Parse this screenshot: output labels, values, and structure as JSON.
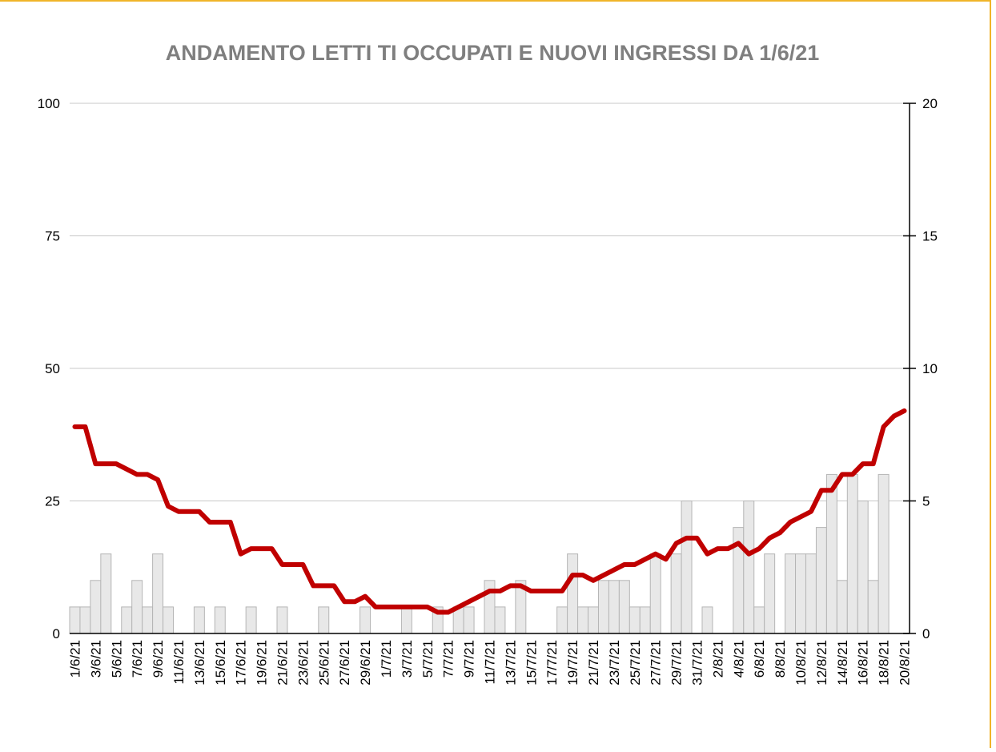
{
  "chart_data": {
    "type": "bar_line",
    "title": "ANDAMENTO LETTI TI OCCUPATI E NUOVI INGRESSI DA 1/6/21",
    "categories": [
      "1/6/21",
      null,
      "3/6/21",
      null,
      "5/6/21",
      null,
      "7/6/21",
      null,
      "9/6/21",
      null,
      "11/6/21",
      null,
      "13/6/21",
      null,
      "15/6/21",
      null,
      "17/6/21",
      null,
      "19/6/21",
      null,
      "21/6/21",
      null,
      "23/6/21",
      null,
      "25/6/21",
      null,
      "27/6/21",
      null,
      "29/6/21",
      null,
      "1/7/21",
      null,
      "3/7/21",
      null,
      "5/7/21",
      null,
      "7/7/21",
      null,
      "9/7/21",
      null,
      "11/7/21",
      null,
      "13/7/21",
      null,
      "15/7/21",
      null,
      "17/7/21",
      null,
      "19/7/21",
      null,
      "21/7/21",
      null,
      "23/7/21",
      null,
      "25/7/21",
      null,
      "27/7/21",
      null,
      "29/7/21",
      null,
      "31/7/21",
      null,
      "2/8/21",
      null,
      "4/8/21",
      null,
      "6/8/21",
      null,
      "8/8/21",
      null,
      "10/8/21",
      null,
      "12/8/21",
      null,
      "14/8/21",
      null,
      "16/8/21",
      null,
      "18/8/21",
      null,
      "20/8/21"
    ],
    "series": [
      {
        "type": "bar",
        "axis": "y2",
        "color": "#e8e8e8",
        "values": [
          1,
          1,
          2,
          3,
          0,
          1,
          2,
          1,
          3,
          1,
          0,
          0,
          1,
          0,
          1,
          0,
          0,
          1,
          0,
          0,
          1,
          0,
          0,
          0,
          1,
          0,
          0,
          0,
          1,
          0,
          0,
          0,
          1,
          0,
          0,
          1,
          0,
          1,
          1,
          0,
          2,
          1,
          0,
          2,
          0,
          0,
          0,
          1,
          3,
          1,
          1,
          2,
          2,
          2,
          1,
          1,
          3,
          0,
          3,
          5,
          0,
          1,
          0,
          0,
          4,
          5,
          1,
          3,
          0,
          3,
          3,
          3,
          4,
          6,
          2,
          6,
          5,
          2,
          6,
          0,
          0
        ]
      },
      {
        "type": "line",
        "axis": "y",
        "color": "#c00000",
        "values": [
          39,
          39,
          32,
          32,
          32,
          31,
          30,
          30,
          29,
          24,
          23,
          23,
          23,
          21,
          21,
          21,
          15,
          16,
          16,
          16,
          13,
          13,
          13,
          9,
          9,
          9,
          6,
          6,
          7,
          5,
          5,
          5,
          5,
          5,
          5,
          4,
          4,
          5,
          6,
          7,
          8,
          8,
          9,
          9,
          8,
          8,
          8,
          8,
          11,
          11,
          10,
          11,
          12,
          13,
          13,
          14,
          15,
          14,
          17,
          18,
          18,
          15,
          16,
          16,
          17,
          15,
          16,
          18,
          19,
          21,
          22,
          23,
          27,
          27,
          30,
          30,
          32,
          32,
          39,
          41,
          42
        ]
      }
    ],
    "ylim": [
      0,
      100
    ],
    "yticks": [
      0,
      25,
      50,
      75,
      100
    ],
    "y2lim": [
      0,
      20
    ],
    "y2ticks": [
      0,
      5,
      10,
      15,
      20
    ],
    "grid": true
  }
}
